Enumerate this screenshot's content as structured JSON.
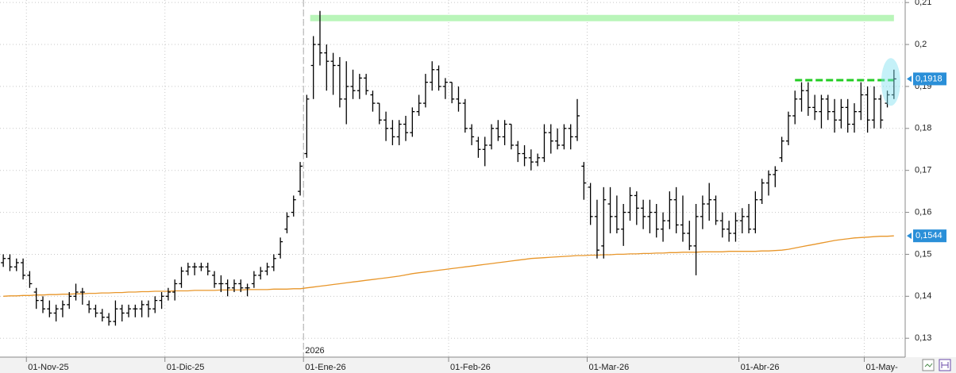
{
  "chart_data": {
    "type": "ohlc",
    "categories": [
      null,
      null,
      null,
      null,
      "01-Nov-25",
      null,
      null,
      null,
      null,
      null,
      null,
      null,
      null,
      null,
      null,
      null,
      null,
      null,
      null,
      null,
      null,
      null,
      null,
      null,
      null,
      "01-Dic-25",
      null,
      null,
      null,
      null,
      null,
      null,
      null,
      null,
      null,
      null,
      null,
      null,
      null,
      null,
      null,
      null,
      null,
      null,
      null,
      null,
      "01-Ene-26",
      null,
      null,
      null,
      null,
      null,
      null,
      null,
      null,
      null,
      null,
      null,
      null,
      null,
      null,
      null,
      null,
      null,
      null,
      null,
      null,
      null,
      "01-Feb-26",
      null,
      null,
      null,
      null,
      null,
      null,
      null,
      null,
      null,
      null,
      null,
      null,
      null,
      null,
      null,
      null,
      null,
      null,
      null,
      null,
      "01-Mar-26",
      null,
      null,
      null,
      null,
      null,
      null,
      null,
      null,
      null,
      null,
      null,
      null,
      null,
      null,
      null,
      null,
      null,
      null,
      null,
      null,
      null,
      null,
      "01-Abr-26",
      null,
      null,
      null,
      null,
      null,
      null,
      null,
      null,
      null,
      null,
      null,
      null,
      null,
      null,
      null,
      null,
      null,
      null,
      "01-May-",
      null,
      null,
      null,
      null
    ],
    "ohlc": [
      [
        0.148,
        0.15,
        0.147,
        0.149
      ],
      [
        0.149,
        0.15,
        0.146,
        0.147
      ],
      [
        0.147,
        0.149,
        0.146,
        0.148
      ],
      [
        0.148,
        0.149,
        0.144,
        0.145
      ],
      [
        0.145,
        0.146,
        0.142,
        0.143
      ],
      [
        0.141,
        0.142,
        0.137,
        0.139
      ],
      [
        0.139,
        0.14,
        0.136,
        0.137
      ],
      [
        0.137,
        0.139,
        0.135,
        0.136
      ],
      [
        0.136,
        0.138,
        0.134,
        0.137
      ],
      [
        0.137,
        0.139,
        0.135,
        0.138
      ],
      [
        0.138,
        0.141,
        0.137,
        0.14
      ],
      [
        0.14,
        0.143,
        0.139,
        0.141
      ],
      [
        0.141,
        0.142,
        0.138,
        0.141
      ],
      [
        0.138,
        0.139,
        0.136,
        0.137
      ],
      [
        0.137,
        0.138,
        0.135,
        0.136
      ],
      [
        0.136,
        0.137,
        0.134,
        0.135
      ],
      [
        0.135,
        0.136,
        0.133,
        0.134
      ],
      [
        0.134,
        0.139,
        0.133,
        0.137
      ],
      [
        0.137,
        0.138,
        0.134,
        0.136
      ],
      [
        0.136,
        0.138,
        0.135,
        0.137
      ],
      [
        0.137,
        0.138,
        0.135,
        0.137
      ],
      [
        0.137,
        0.139,
        0.135,
        0.138
      ],
      [
        0.138,
        0.139,
        0.135,
        0.137
      ],
      [
        0.137,
        0.14,
        0.136,
        0.139
      ],
      [
        0.139,
        0.141,
        0.137,
        0.14
      ],
      [
        0.14,
        0.142,
        0.139,
        0.141
      ],
      [
        0.141,
        0.144,
        0.139,
        0.143
      ],
      [
        0.143,
        0.147,
        0.142,
        0.146
      ],
      [
        0.146,
        0.148,
        0.145,
        0.147
      ],
      [
        0.147,
        0.148,
        0.145,
        0.147
      ],
      [
        0.147,
        0.148,
        0.146,
        0.147
      ],
      [
        0.147,
        0.148,
        0.145,
        0.146
      ],
      [
        0.145,
        0.146,
        0.142,
        0.143
      ],
      [
        0.143,
        0.145,
        0.141,
        0.143
      ],
      [
        0.143,
        0.144,
        0.14,
        0.142
      ],
      [
        0.142,
        0.144,
        0.141,
        0.143
      ],
      [
        0.143,
        0.144,
        0.141,
        0.142
      ],
      [
        0.142,
        0.143,
        0.14,
        0.142
      ],
      [
        0.143,
        0.146,
        0.142,
        0.145
      ],
      [
        0.145,
        0.147,
        0.144,
        0.146
      ],
      [
        0.146,
        0.148,
        0.145,
        0.147
      ],
      [
        0.147,
        0.15,
        0.146,
        0.149
      ],
      [
        0.15,
        0.154,
        0.149,
        0.153
      ],
      [
        0.156,
        0.16,
        0.155,
        0.159
      ],
      [
        0.16,
        0.164,
        0.159,
        0.163
      ],
      [
        0.165,
        0.172,
        0.164,
        0.171
      ],
      [
        0.174,
        0.188,
        0.173,
        0.187
      ],
      [
        0.195,
        0.202,
        0.187,
        0.2
      ],
      [
        0.2,
        0.208,
        0.195,
        0.198
      ],
      [
        0.198,
        0.2,
        0.189,
        0.196
      ],
      [
        0.196,
        0.198,
        0.188,
        0.195
      ],
      [
        0.195,
        0.197,
        0.185,
        0.187
      ],
      [
        0.187,
        0.196,
        0.181,
        0.19
      ],
      [
        0.19,
        0.194,
        0.187,
        0.189
      ],
      [
        0.189,
        0.193,
        0.187,
        0.192
      ],
      [
        0.192,
        0.193,
        0.188,
        0.189
      ],
      [
        0.188,
        0.189,
        0.184,
        0.186
      ],
      [
        0.186,
        0.186,
        0.181,
        0.182
      ],
      [
        0.182,
        0.184,
        0.177,
        0.18
      ],
      [
        0.18,
        0.182,
        0.176,
        0.178
      ],
      [
        0.178,
        0.182,
        0.176,
        0.181
      ],
      [
        0.181,
        0.183,
        0.177,
        0.179
      ],
      [
        0.179,
        0.185,
        0.178,
        0.184
      ],
      [
        0.184,
        0.188,
        0.183,
        0.186
      ],
      [
        0.186,
        0.193,
        0.185,
        0.191
      ],
      [
        0.191,
        0.196,
        0.189,
        0.194
      ],
      [
        0.194,
        0.195,
        0.189,
        0.19
      ],
      [
        0.19,
        0.192,
        0.187,
        0.191
      ],
      [
        0.191,
        0.191,
        0.186,
        0.187
      ],
      [
        0.187,
        0.19,
        0.184,
        0.186
      ],
      [
        0.186,
        0.187,
        0.179,
        0.18
      ],
      [
        0.18,
        0.181,
        0.176,
        0.178
      ],
      [
        0.177,
        0.178,
        0.173,
        0.175
      ],
      [
        0.175,
        0.178,
        0.171,
        0.176
      ],
      [
        0.176,
        0.181,
        0.175,
        0.18
      ],
      [
        0.18,
        0.182,
        0.177,
        0.178
      ],
      [
        0.178,
        0.182,
        0.176,
        0.181
      ],
      [
        0.181,
        0.181,
        0.175,
        0.176
      ],
      [
        0.176,
        0.177,
        0.172,
        0.174
      ],
      [
        0.174,
        0.176,
        0.171,
        0.173
      ],
      [
        0.173,
        0.175,
        0.17,
        0.172
      ],
      [
        0.172,
        0.174,
        0.171,
        0.173
      ],
      [
        0.173,
        0.181,
        0.172,
        0.179
      ],
      [
        0.179,
        0.181,
        0.174,
        0.177
      ],
      [
        0.177,
        0.18,
        0.175,
        0.176
      ],
      [
        0.176,
        0.181,
        0.175,
        0.18
      ],
      [
        0.18,
        0.181,
        0.175,
        0.178
      ],
      [
        0.178,
        0.187,
        0.177,
        0.183
      ],
      [
        0.171,
        0.172,
        0.163,
        0.167
      ],
      [
        0.166,
        0.167,
        0.157,
        0.159
      ],
      [
        0.159,
        0.163,
        0.149,
        0.151
      ],
      [
        0.152,
        0.166,
        0.149,
        0.163
      ],
      [
        0.162,
        0.166,
        0.155,
        0.159
      ],
      [
        0.159,
        0.164,
        0.155,
        0.156
      ],
      [
        0.156,
        0.162,
        0.152,
        0.16
      ],
      [
        0.16,
        0.166,
        0.158,
        0.164
      ],
      [
        0.164,
        0.165,
        0.157,
        0.161
      ],
      [
        0.161,
        0.163,
        0.156,
        0.159
      ],
      [
        0.159,
        0.163,
        0.155,
        0.16
      ],
      [
        0.16,
        0.162,
        0.154,
        0.156
      ],
      [
        0.156,
        0.16,
        0.153,
        0.158
      ],
      [
        0.158,
        0.165,
        0.156,
        0.163
      ],
      [
        0.163,
        0.166,
        0.155,
        0.157
      ],
      [
        0.157,
        0.164,
        0.153,
        0.155
      ],
      [
        0.155,
        0.158,
        0.151,
        0.152
      ],
      [
        0.152,
        0.162,
        0.145,
        0.159
      ],
      [
        0.159,
        0.164,
        0.156,
        0.162
      ],
      [
        0.162,
        0.167,
        0.158,
        0.163
      ],
      [
        0.163,
        0.164,
        0.157,
        0.158
      ],
      [
        0.158,
        0.16,
        0.154,
        0.156
      ],
      [
        0.156,
        0.158,
        0.153,
        0.155
      ],
      [
        0.155,
        0.16,
        0.153,
        0.158
      ],
      [
        0.158,
        0.161,
        0.155,
        0.159
      ],
      [
        0.159,
        0.162,
        0.155,
        0.156
      ],
      [
        0.156,
        0.165,
        0.155,
        0.163
      ],
      [
        0.163,
        0.168,
        0.162,
        0.167
      ],
      [
        0.167,
        0.17,
        0.164,
        0.169
      ],
      [
        0.169,
        0.171,
        0.166,
        0.17
      ],
      [
        0.173,
        0.178,
        0.172,
        0.177
      ],
      [
        0.177,
        0.184,
        0.176,
        0.183
      ],
      [
        0.183,
        0.189,
        0.181,
        0.187
      ],
      [
        0.187,
        0.191,
        0.184,
        0.189
      ],
      [
        0.189,
        0.191,
        0.183,
        0.185
      ],
      [
        0.185,
        0.188,
        0.182,
        0.184
      ],
      [
        0.184,
        0.188,
        0.18,
        0.187
      ],
      [
        0.187,
        0.188,
        0.182,
        0.184
      ],
      [
        0.184,
        0.187,
        0.179,
        0.182
      ],
      [
        0.182,
        0.187,
        0.18,
        0.185
      ],
      [
        0.185,
        0.187,
        0.179,
        0.181
      ],
      [
        0.181,
        0.186,
        0.179,
        0.184
      ],
      [
        0.184,
        0.191,
        0.182,
        0.188
      ],
      [
        0.188,
        0.19,
        0.179,
        0.182
      ],
      [
        0.182,
        0.19,
        0.18,
        0.187
      ],
      [
        0.187,
        0.188,
        0.18,
        0.182
      ],
      [
        0.186,
        0.189,
        0.185,
        0.188
      ],
      [
        0.188,
        0.194,
        0.187,
        0.1918
      ]
    ],
    "bar_color": "#000000",
    "moving_average": {
      "color": "#e8962a",
      "values": [
        0.14,
        0.1401,
        0.1401,
        0.1402,
        0.1402,
        0.1403,
        0.1403,
        0.1404,
        0.1404,
        0.1405,
        0.1405,
        0.1406,
        0.1406,
        0.1407,
        0.1407,
        0.1408,
        0.1408,
        0.1409,
        0.1409,
        0.141,
        0.141,
        0.1411,
        0.1411,
        0.1412,
        0.1412,
        0.1412,
        0.1413,
        0.1413,
        0.1413,
        0.1414,
        0.1414,
        0.1414,
        0.1414,
        0.1415,
        0.1415,
        0.1415,
        0.1415,
        0.1416,
        0.1416,
        0.1416,
        0.1416,
        0.1417,
        0.1417,
        0.1417,
        0.1418,
        0.1418,
        0.142,
        0.1422,
        0.1424,
        0.1426,
        0.1428,
        0.143,
        0.1432,
        0.1434,
        0.1436,
        0.1438,
        0.144,
        0.1442,
        0.1444,
        0.1446,
        0.1448,
        0.1451,
        0.1454,
        0.1456,
        0.1458,
        0.146,
        0.1462,
        0.1464,
        0.1466,
        0.1468,
        0.147,
        0.1472,
        0.1474,
        0.1476,
        0.1478,
        0.148,
        0.1482,
        0.1484,
        0.1486,
        0.1488,
        0.149,
        0.1491,
        0.1492,
        0.1493,
        0.1494,
        0.1495,
        0.1496,
        0.1497,
        0.1497,
        0.1498,
        0.1498,
        0.1499,
        0.1499,
        0.15,
        0.15,
        0.1501,
        0.1501,
        0.1502,
        0.1502,
        0.1503,
        0.1503,
        0.1504,
        0.1504,
        0.1505,
        0.1505,
        0.1505,
        0.1506,
        0.1506,
        0.1506,
        0.1506,
        0.1507,
        0.1507,
        0.1507,
        0.1507,
        0.1507,
        0.1508,
        0.1508,
        0.1509,
        0.151,
        0.1512,
        0.1515,
        0.1518,
        0.1521,
        0.1524,
        0.1527,
        0.153,
        0.1533,
        0.1535,
        0.1537,
        0.1539,
        0.154,
        0.1541,
        0.1542,
        0.1543,
        0.1543,
        0.1544
      ]
    },
    "levels": [
      {
        "value": 0.2063,
        "color": "#b9f5b9",
        "style": "band"
      },
      {
        "value": 0.1915,
        "color": "#22cc22",
        "style": "dashed"
      }
    ],
    "price_labels": [
      {
        "value": 0.1918,
        "label": "0,1918"
      },
      {
        "value": 0.1544,
        "label": "0,1544"
      }
    ],
    "price_label_color": "#2a8fd8",
    "year_annotation": "2026",
    "ylim": [
      0.1255,
      0.2106
    ],
    "yticks": [
      {
        "value": 0.13,
        "label": "0,13"
      },
      {
        "value": 0.14,
        "label": "0,14"
      },
      {
        "value": 0.15,
        "label": "0,15"
      },
      {
        "value": 0.16,
        "label": "0,16"
      },
      {
        "value": 0.17,
        "label": "0,17"
      },
      {
        "value": 0.18,
        "label": "0,18"
      },
      {
        "value": 0.19,
        "label": "0,19"
      },
      {
        "value": 0.2,
        "label": "0,2"
      },
      {
        "value": 0.21,
        "label": "0,21"
      }
    ],
    "grid": true
  }
}
